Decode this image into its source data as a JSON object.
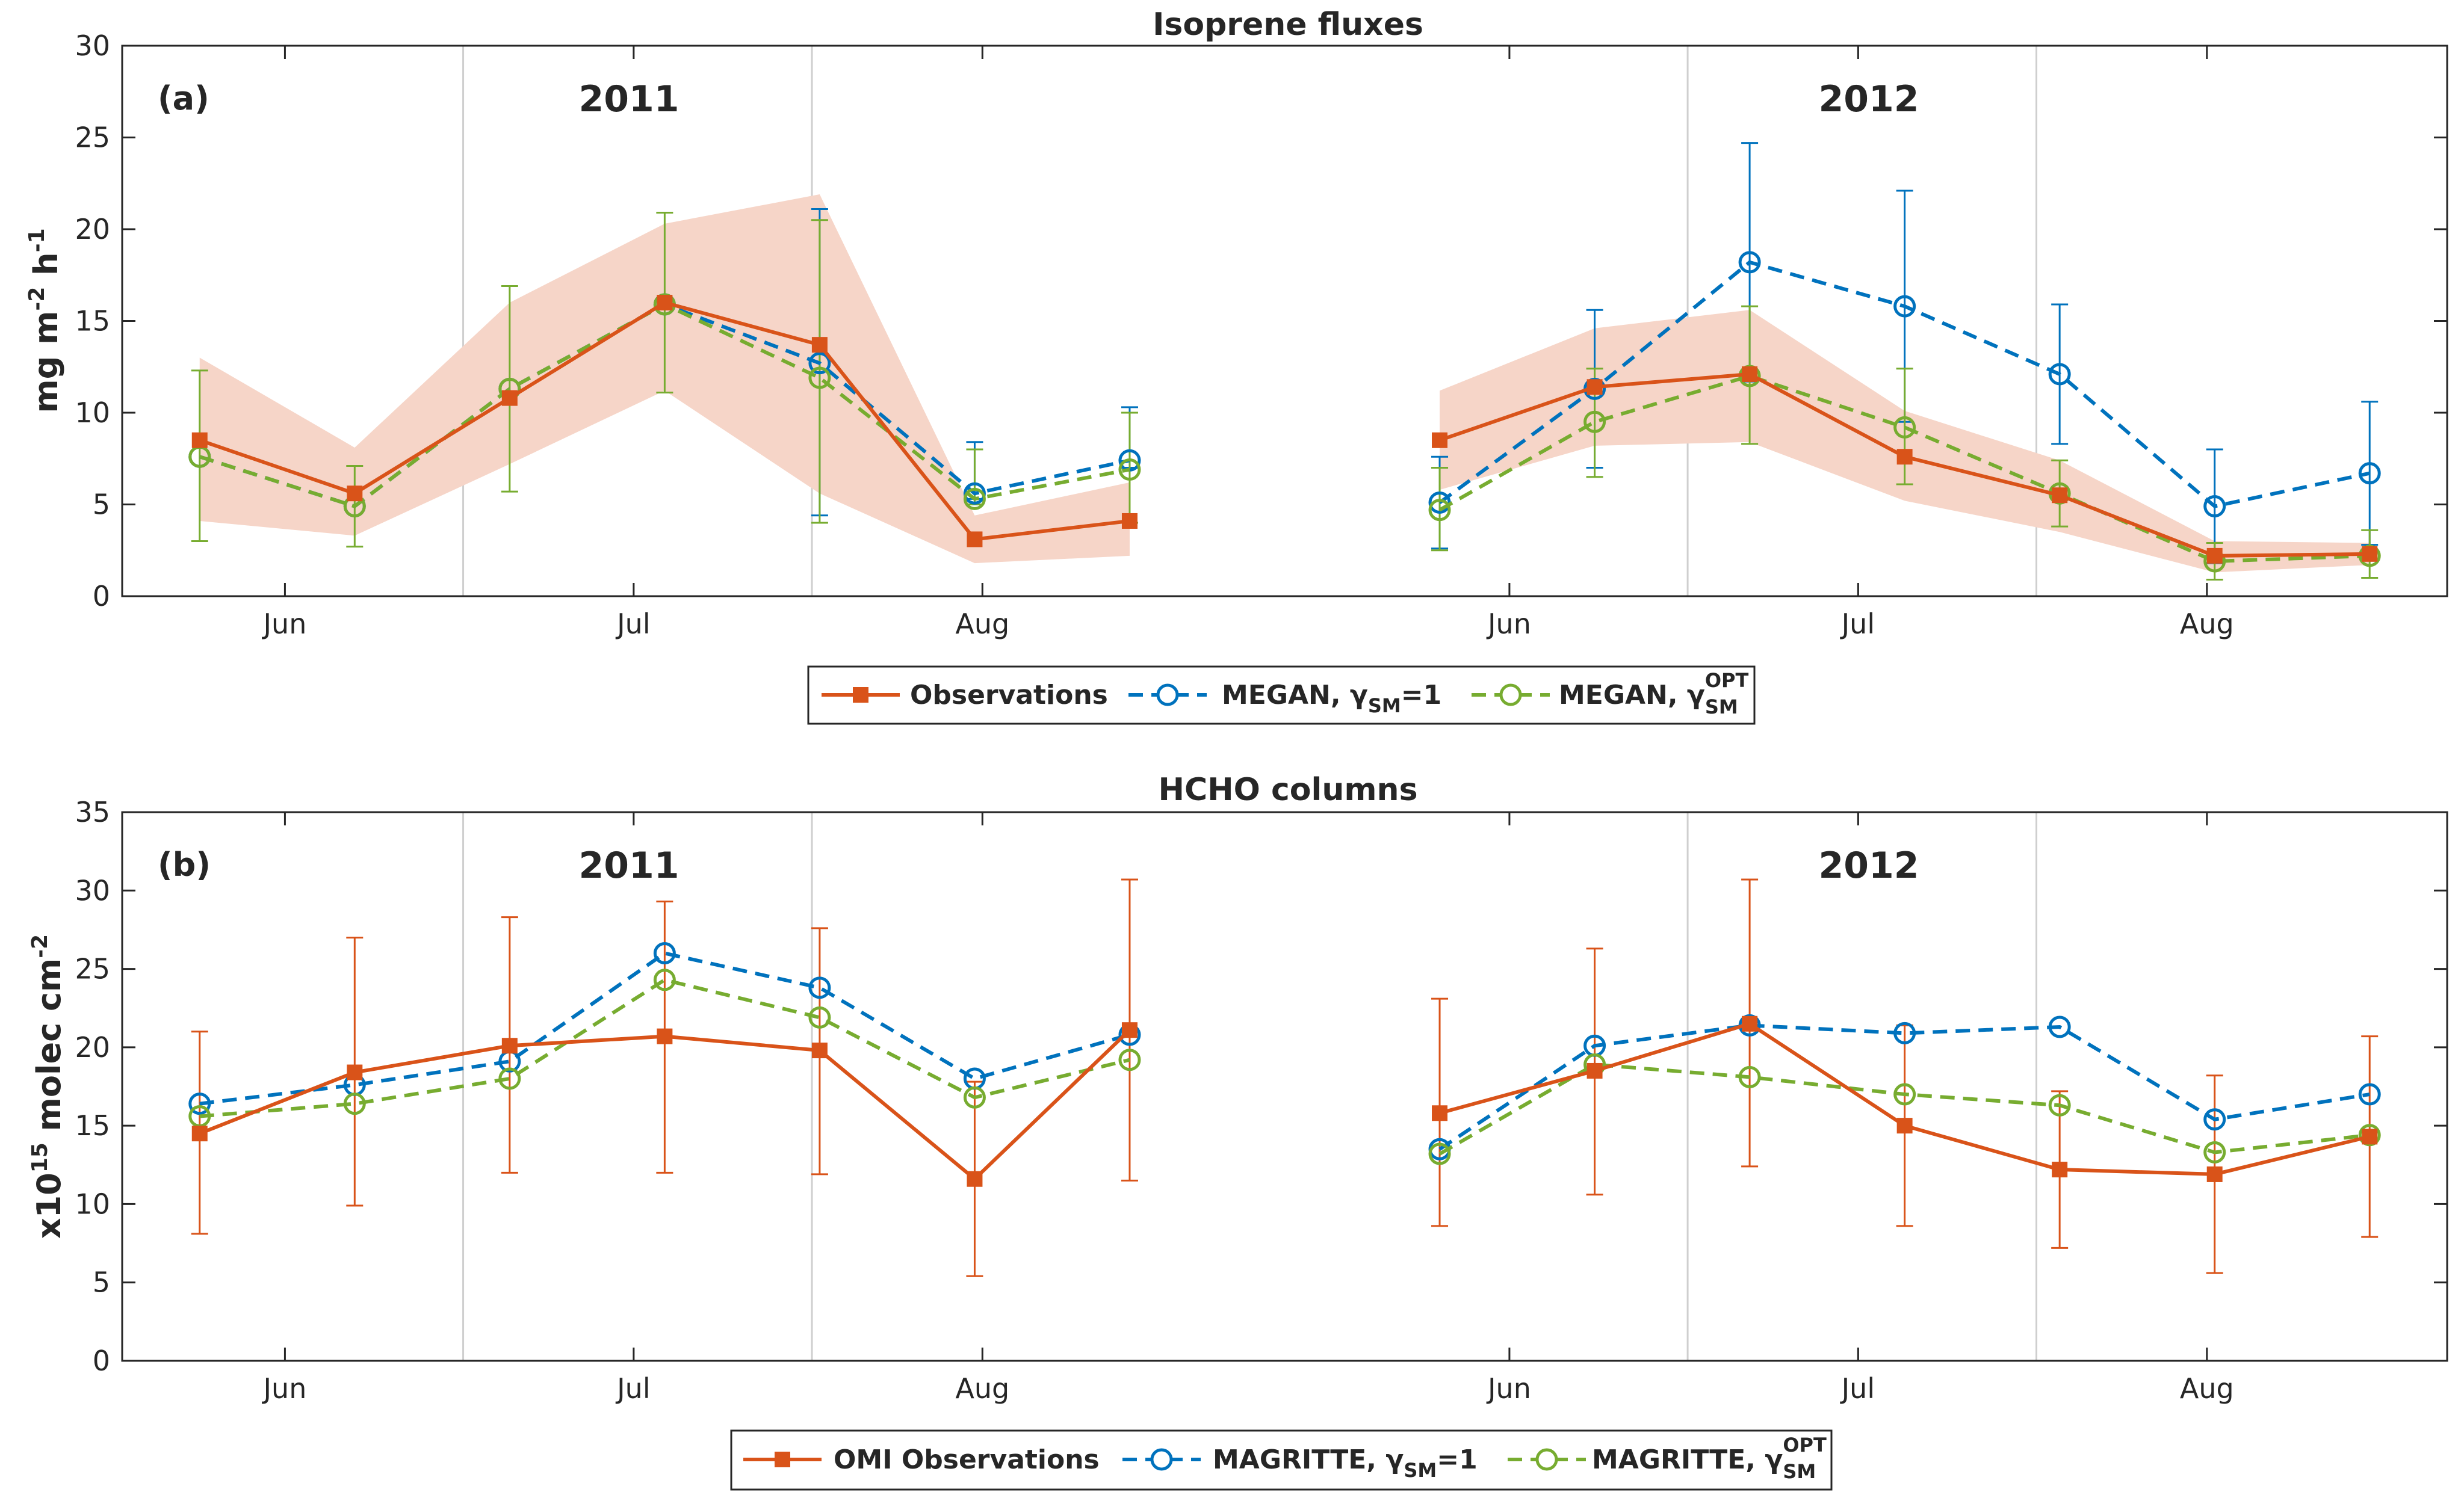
{
  "chart_data": [
    {
      "id": "a",
      "type": "line",
      "title": "Isoprene fluxes",
      "panel_label": "(a)",
      "ylabel": {
        "base": "mg m",
        "sup1": "-2",
        "mid": " h",
        "sup2": "-1"
      },
      "ylim": [
        0,
        30
      ],
      "yticks": [
        0,
        5,
        10,
        15,
        20,
        25,
        30
      ],
      "year_labels": [
        "2011",
        "2012"
      ],
      "month_ticks": [
        "Jun",
        "Jul",
        "Aug",
        "Jun",
        "Jul",
        "Aug"
      ],
      "x": [
        1,
        2,
        3,
        4,
        5,
        6,
        7,
        9,
        10,
        11,
        12,
        13,
        14,
        15
      ],
      "series": [
        {
          "name": "Observations",
          "color": "#d95319",
          "style": "solid",
          "marker": "square",
          "values": [
            8.5,
            5.6,
            10.8,
            16.0,
            13.7,
            3.1,
            4.1,
            8.5,
            11.4,
            12.1,
            7.6,
            5.5,
            2.2,
            2.3
          ],
          "band_low": [
            4.1,
            3.3,
            7.2,
            11.2,
            5.6,
            1.8,
            2.2,
            5.8,
            8.2,
            8.4,
            5.2,
            3.5,
            1.3,
            1.7
          ],
          "band_high": [
            13.0,
            8.1,
            16.0,
            20.3,
            21.9,
            4.4,
            6.2,
            11.2,
            14.6,
            15.6,
            10.1,
            7.4,
            3.0,
            2.9
          ]
        },
        {
          "name": "MEGAN, γ",
          "sub": "SM",
          "suffix": "=1",
          "color": "#0072bd",
          "style": "dashed",
          "marker": "circle",
          "values": [
            7.6,
            4.9,
            11.3,
            15.9,
            12.7,
            5.6,
            7.4,
            5.1,
            11.3,
            18.2,
            15.8,
            12.1,
            4.9,
            6.7
          ],
          "err_low": [
            null,
            null,
            null,
            null,
            4.4,
            5.3,
            7.0,
            2.6,
            7.0,
            11.7,
            9.5,
            8.3,
            1.8,
            2.8
          ],
          "err_high": [
            null,
            null,
            null,
            null,
            21.1,
            8.4,
            10.3,
            7.6,
            15.6,
            24.7,
            22.1,
            15.9,
            8.0,
            10.6
          ]
        },
        {
          "name": "MEGAN, γ",
          "sub": "SM",
          "sup": "OPT",
          "color": "#77ac30",
          "style": "dashed",
          "marker": "circle",
          "values": [
            7.6,
            4.9,
            11.3,
            15.9,
            11.9,
            5.3,
            6.9,
            4.7,
            9.5,
            12.0,
            9.2,
            5.6,
            1.9,
            2.2
          ],
          "err_low": [
            3.0,
            2.7,
            5.7,
            11.1,
            4.0,
            5.0,
            4.0,
            2.5,
            6.5,
            8.3,
            6.1,
            3.8,
            0.9,
            1.0
          ],
          "err_high": [
            12.3,
            7.1,
            16.9,
            20.9,
            20.5,
            8.0,
            10.0,
            7.0,
            12.4,
            15.8,
            12.4,
            7.4,
            2.9,
            3.6
          ]
        }
      ]
    },
    {
      "id": "b",
      "type": "line",
      "title": "HCHO columns",
      "panel_label": "(b)",
      "ylabel": {
        "base": "x10",
        "sup1": "15",
        "mid": " molec cm",
        "sup2": "-2"
      },
      "ylim": [
        0,
        35
      ],
      "yticks": [
        0,
        5,
        10,
        15,
        20,
        25,
        30,
        35
      ],
      "year_labels": [
        "2011",
        "2012"
      ],
      "month_ticks": [
        "Jun",
        "Jul",
        "Aug",
        "Jun",
        "Jul",
        "Aug"
      ],
      "x": [
        1,
        2,
        3,
        4,
        5,
        6,
        7,
        9,
        10,
        11,
        12,
        13,
        14,
        15
      ],
      "series": [
        {
          "name": "OMI Observations",
          "color": "#d95319",
          "style": "solid",
          "marker": "square",
          "values": [
            14.5,
            18.4,
            20.1,
            20.7,
            19.8,
            11.6,
            21.1,
            15.8,
            18.5,
            21.5,
            15.0,
            12.2,
            11.9,
            14.3
          ],
          "err_low": [
            8.1,
            9.9,
            12.0,
            12.0,
            11.9,
            5.4,
            11.5,
            8.6,
            10.6,
            12.4,
            8.6,
            7.2,
            5.6,
            7.9
          ],
          "err_high": [
            21.0,
            27.0,
            28.3,
            29.3,
            27.6,
            17.8,
            30.7,
            23.1,
            26.3,
            30.7,
            21.4,
            17.2,
            18.2,
            20.7
          ]
        },
        {
          "name": "MAGRITTE, γ",
          "sub": "SM",
          "suffix": "=1",
          "color": "#0072bd",
          "style": "dashed",
          "marker": "circle",
          "values": [
            16.4,
            17.6,
            19.1,
            26.0,
            23.8,
            18.0,
            20.8,
            13.5,
            20.1,
            21.4,
            20.9,
            21.3,
            15.4,
            17.0
          ]
        },
        {
          "name": "MAGRITTE, γ",
          "sub": "SM",
          "sup": "OPT",
          "color": "#77ac30",
          "style": "dashed",
          "marker": "circle",
          "values": [
            15.6,
            16.4,
            18.0,
            24.3,
            21.9,
            16.8,
            19.2,
            13.2,
            18.9,
            18.1,
            17.0,
            16.3,
            13.3,
            14.4
          ]
        }
      ]
    }
  ]
}
